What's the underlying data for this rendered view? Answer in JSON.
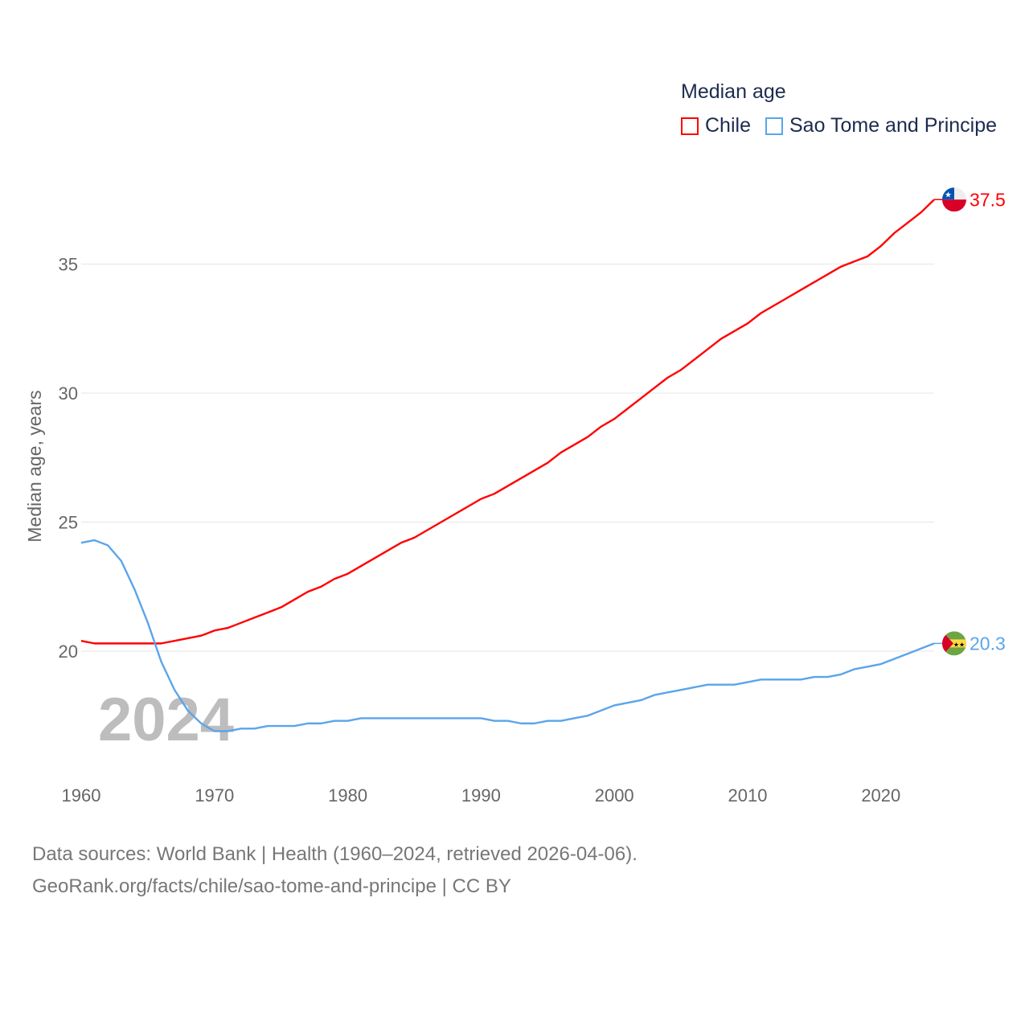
{
  "chart_data": {
    "type": "line",
    "title": "Median age",
    "xlabel": "",
    "ylabel": "Median age, years",
    "xlim": [
      1960,
      2024
    ],
    "ylim": [
      16,
      39.5
    ],
    "xticks": [
      1960,
      1970,
      1980,
      1990,
      2000,
      2010,
      2020
    ],
    "yticks": [
      20,
      25,
      30,
      35
    ],
    "grid": true,
    "legend_position": "top-right",
    "watermark_year": "2024",
    "x": [
      1960,
      1961,
      1962,
      1963,
      1964,
      1965,
      1966,
      1967,
      1968,
      1969,
      1970,
      1971,
      1972,
      1973,
      1974,
      1975,
      1976,
      1977,
      1978,
      1979,
      1980,
      1981,
      1982,
      1983,
      1984,
      1985,
      1986,
      1987,
      1988,
      1989,
      1990,
      1991,
      1992,
      1993,
      1994,
      1995,
      1996,
      1997,
      1998,
      1999,
      2000,
      2001,
      2002,
      2003,
      2004,
      2005,
      2006,
      2007,
      2008,
      2009,
      2010,
      2011,
      2012,
      2013,
      2014,
      2015,
      2016,
      2017,
      2018,
      2019,
      2020,
      2021,
      2022,
      2023,
      2024
    ],
    "series": [
      {
        "name": "Chile",
        "color": "#ff0000",
        "end_label": "37.5",
        "values": [
          20.4,
          20.3,
          20.3,
          20.3,
          20.3,
          20.3,
          20.3,
          20.4,
          20.5,
          20.6,
          20.8,
          20.9,
          21.1,
          21.3,
          21.5,
          21.7,
          22.0,
          22.3,
          22.5,
          22.8,
          23.0,
          23.3,
          23.6,
          23.9,
          24.2,
          24.4,
          24.7,
          25.0,
          25.3,
          25.6,
          25.9,
          26.1,
          26.4,
          26.7,
          27.0,
          27.3,
          27.7,
          28.0,
          28.3,
          28.7,
          29.0,
          29.4,
          29.8,
          30.2,
          30.6,
          30.9,
          31.3,
          31.7,
          32.1,
          32.4,
          32.7,
          33.1,
          33.4,
          33.7,
          34.0,
          34.3,
          34.6,
          34.9,
          35.1,
          35.3,
          35.7,
          36.2,
          36.6,
          37.0,
          37.5
        ]
      },
      {
        "name": "Sao Tome and Principe",
        "color": "#5aa5ea",
        "end_label": "20.3",
        "values": [
          24.2,
          24.3,
          24.1,
          23.5,
          22.4,
          21.1,
          19.6,
          18.5,
          17.7,
          17.2,
          16.9,
          16.9,
          17.0,
          17.0,
          17.1,
          17.1,
          17.1,
          17.2,
          17.2,
          17.3,
          17.3,
          17.4,
          17.4,
          17.4,
          17.4,
          17.4,
          17.4,
          17.4,
          17.4,
          17.4,
          17.4,
          17.3,
          17.3,
          17.2,
          17.2,
          17.3,
          17.3,
          17.4,
          17.5,
          17.7,
          17.9,
          18.0,
          18.1,
          18.3,
          18.4,
          18.5,
          18.6,
          18.7,
          18.7,
          18.7,
          18.8,
          18.9,
          18.9,
          18.9,
          18.9,
          19.0,
          19.0,
          19.1,
          19.3,
          19.4,
          19.5,
          19.7,
          19.9,
          20.1,
          20.3
        ]
      }
    ]
  },
  "footer": {
    "line1": "Data sources: World Bank | Health (1960–2024, retrieved 2026-04-06).",
    "line2": "GeoRank.org/facts/chile/sao-tome-and-principe | CC BY"
  }
}
